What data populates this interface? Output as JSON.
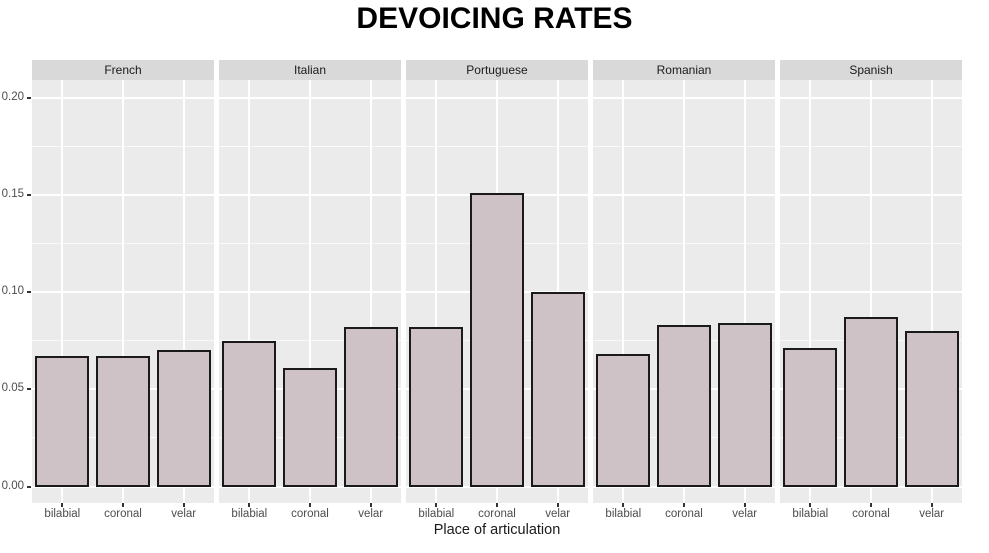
{
  "title": "DEVOICING RATES",
  "chart_data": {
    "type": "bar",
    "faceted": true,
    "title": "DEVOICING RATES",
    "xlabel": "Place of articulation",
    "ylabel": "",
    "categories": [
      "bilabial",
      "coronal",
      "velar"
    ],
    "facet_titles": [
      "French",
      "Italian",
      "Portuguese",
      "Romanian",
      "Spanish"
    ],
    "series": [
      {
        "name": "French",
        "values": [
          0.067,
          0.067,
          0.07
        ]
      },
      {
        "name": "Italian",
        "values": [
          0.075,
          0.061,
          0.082
        ]
      },
      {
        "name": "Portuguese",
        "values": [
          0.082,
          0.151,
          0.1
        ]
      },
      {
        "name": "Romanian",
        "values": [
          0.068,
          0.083,
          0.084
        ]
      },
      {
        "name": "Spanish",
        "values": [
          0.071,
          0.087,
          0.08
        ]
      }
    ],
    "ylim": [
      0,
      0.21
    ],
    "yticks": [
      0.0,
      0.05,
      0.1,
      0.15,
      0.2
    ],
    "ytick_labels": [
      "0.00",
      "0.05",
      "0.10",
      "0.15",
      "0.20"
    ],
    "minor_yticks": [
      0.025,
      0.075,
      0.125,
      0.175
    ],
    "grid": true,
    "legend": "none",
    "colors": {
      "bar_fill": "#cec2c7",
      "bar_stroke": "#1a1a1a",
      "panel_bg": "#ebebeb",
      "strip_bg": "#d9d9d9",
      "gridline": "#ffffff",
      "tick_text": "#4d4d4d",
      "title_text": "#000000"
    }
  }
}
